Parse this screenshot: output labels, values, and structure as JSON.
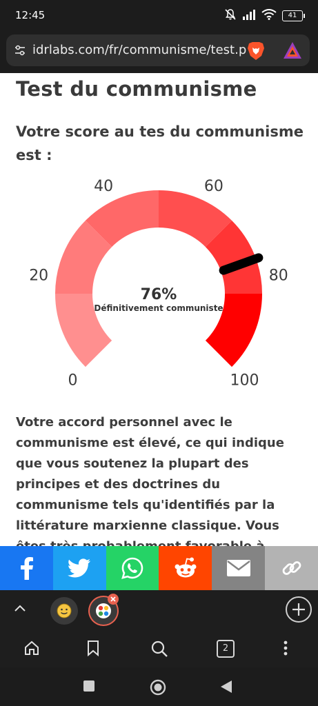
{
  "status_bar": {
    "time": "12:45",
    "battery": "41"
  },
  "browser": {
    "url": "idrlabs.com/fr/communisme/test.p"
  },
  "page": {
    "title": "Test du communisme",
    "score_intro": "Votre score au tes du communisme est :",
    "gauge": {
      "score_text": "76%",
      "caption": "Définitivement communiste",
      "score": 76,
      "min": 0,
      "max": 100,
      "ticks": [
        "0",
        "20",
        "40",
        "60",
        "80",
        "100"
      ],
      "segment_colors": [
        "#ff8f8f",
        "#ff7b7b",
        "#ff6868",
        "#ff4f4f",
        "#ff3535",
        "#ff0000"
      ],
      "needle_color": "#000000"
    },
    "description": "Votre accord personnel avec le communisme est élevé, ce qui indique que vous soutenez la plupart des principes et des doctrines du communisme tels qu'identifiés par la littérature marxienne classique. Vous êtes très probablement favorable à"
  },
  "share_bar": [
    {
      "name": "facebook",
      "icon": "facebook-icon",
      "color": "#1877f2"
    },
    {
      "name": "twitter",
      "icon": "twitter-icon",
      "color": "#1da1f2"
    },
    {
      "name": "whatsapp",
      "icon": "whatsapp-icon",
      "color": "#25d366"
    },
    {
      "name": "reddit",
      "icon": "reddit-icon",
      "color": "#ff4500"
    },
    {
      "name": "email",
      "icon": "mail-icon",
      "color": "#848484"
    },
    {
      "name": "copy-link",
      "icon": "link-icon",
      "color": "#b3b3b3"
    }
  ],
  "tabs": {
    "count": "2"
  }
}
